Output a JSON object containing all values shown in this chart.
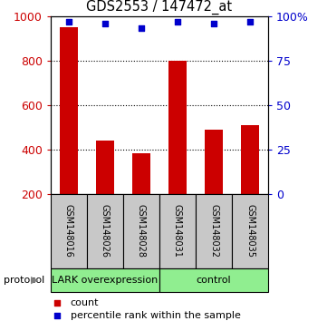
{
  "title": "GDS2553 / 147472_at",
  "samples": [
    "GSM148016",
    "GSM148026",
    "GSM148028",
    "GSM148031",
    "GSM148032",
    "GSM148035"
  ],
  "counts": [
    950,
    440,
    385,
    800,
    490,
    510
  ],
  "percentiles": [
    97,
    96,
    93,
    97,
    96,
    97
  ],
  "ylim_left": [
    200,
    1000
  ],
  "ylim_right": [
    0,
    100
  ],
  "yticks_left": [
    200,
    400,
    600,
    800,
    1000
  ],
  "yticks_right": [
    0,
    25,
    50,
    75,
    100
  ],
  "ytick_labels_right": [
    "0",
    "25",
    "50",
    "75",
    "100%"
  ],
  "groups": [
    {
      "label": "LARK overexpression",
      "start": 0,
      "end": 3,
      "color": "#90EE90"
    },
    {
      "label": "control",
      "start": 3,
      "end": 6,
      "color": "#90EE90"
    }
  ],
  "group_label_prefix": "protocol",
  "bar_color": "#CC0000",
  "dot_color": "#0000CC",
  "bar_width": 0.5,
  "legend_items": [
    {
      "label": "count",
      "color": "#CC0000"
    },
    {
      "label": "percentile rank within the sample",
      "color": "#0000CC"
    }
  ],
  "grid_yticks": [
    400,
    600,
    800
  ],
  "label_box_color": "#C8C8C8"
}
